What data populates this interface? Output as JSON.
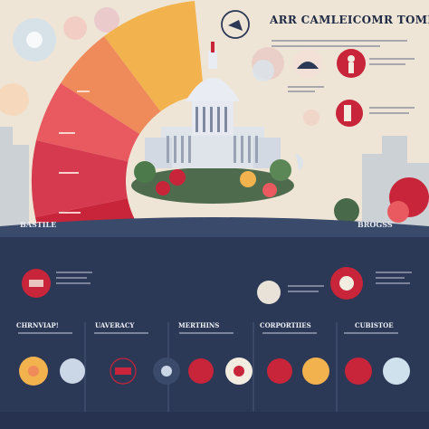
{
  "header": {
    "title": "ARR CAMLEICOMR TOMPF"
  },
  "side_labels": {
    "left": "BASTILE",
    "right": "BROGSS"
  },
  "sections": [
    {
      "label": "CHRNVIAP!"
    },
    {
      "label": "UAVERACY"
    },
    {
      "label": "MERTHINS"
    },
    {
      "label": "CORPORTIIES"
    },
    {
      "label": "CUBISTOE"
    }
  ],
  "colors": {
    "navy": "#2b3856",
    "crimson": "#c8243a",
    "sand": "#f3ece1",
    "gold": "#f2b24e"
  },
  "icons": [
    "capitol-building",
    "flag-icon",
    "person-icon",
    "scales-icon",
    "bicycle-icon",
    "tree-icon"
  ]
}
